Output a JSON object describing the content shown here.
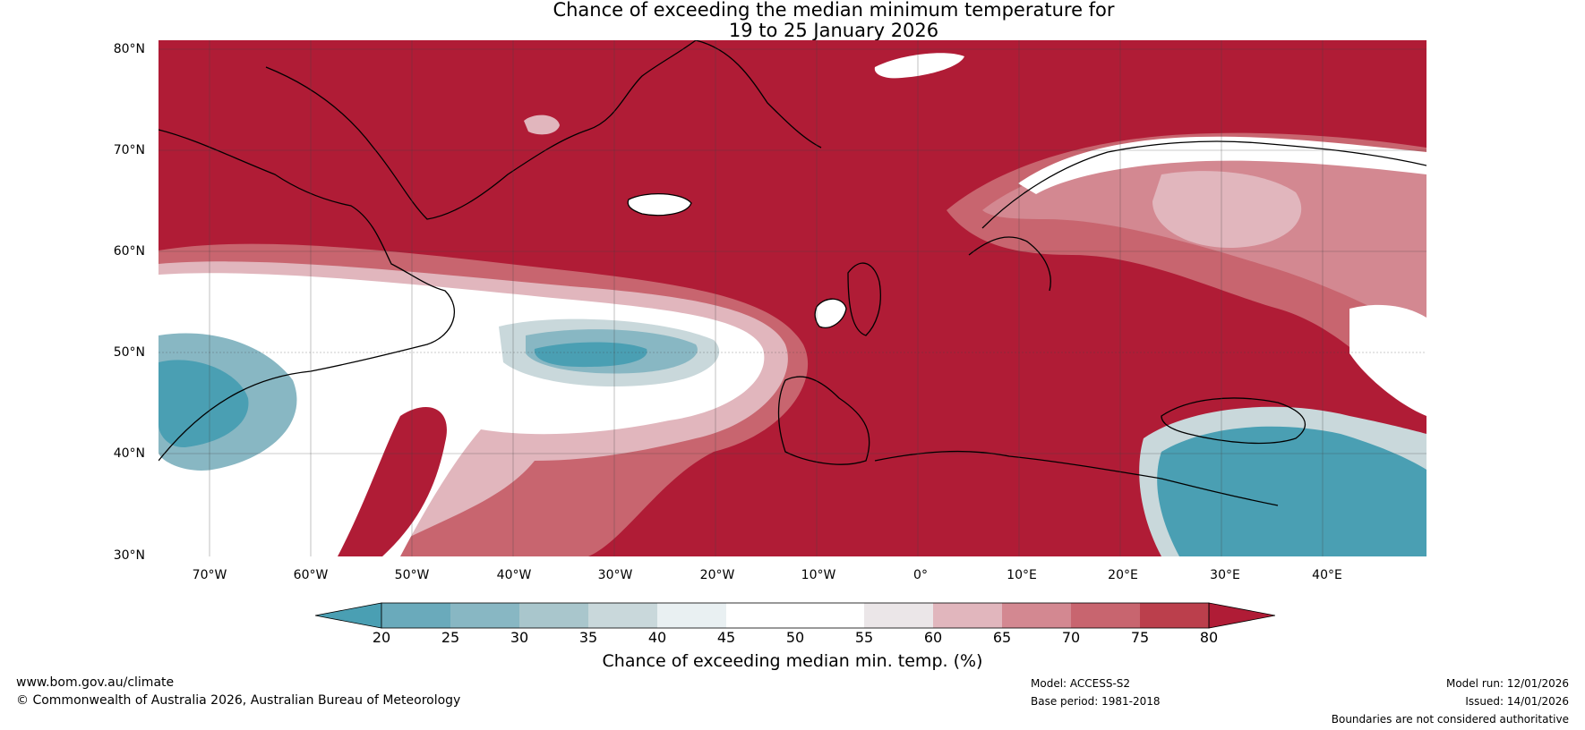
{
  "title": {
    "line1": "Chance of exceeding the median minimum temperature for",
    "line2": "19 to 25 January 2026"
  },
  "axes": {
    "lat_labels": [
      "80°N",
      "70°N",
      "60°N",
      "50°N",
      "40°N",
      "30°N"
    ],
    "lon_labels": [
      "70°W",
      "60°W",
      "50°W",
      "40°W",
      "30°W",
      "20°W",
      "10°W",
      "0°",
      "10°E",
      "20°E",
      "30°E",
      "40°E"
    ],
    "lat_range": [
      30,
      80
    ],
    "lon_range": [
      -75,
      50
    ]
  },
  "colorbar": {
    "title": "Chance of exceeding median min. temp. (%)",
    "ticks": [
      "20",
      "25",
      "30",
      "35",
      "40",
      "45",
      "50",
      "55",
      "60",
      "65",
      "70",
      "75",
      "80"
    ],
    "colors": [
      "#4a9fb3",
      "#6aaabb",
      "#88b7c3",
      "#a9c6cc",
      "#c9d8db",
      "#e9f0f2",
      "#ffffff",
      "#ffffff",
      "#ebe6e8",
      "#e1b6bd",
      "#d38891",
      "#c8656f",
      "#bb3f4c",
      "#b01c36"
    ]
  },
  "map_colors": {
    "strong_warm": "#b01c36",
    "warm": "#c8656f",
    "mild_warm": "#d38891",
    "light_warm": "#e1b6bd",
    "neutral": "#ffffff",
    "light_cool": "#c9d8db",
    "cool": "#88b7c3",
    "strong_cool": "#4a9fb3"
  },
  "footer": {
    "website": "www.bom.gov.au/climate",
    "copyright": "© Commonwealth of Australia 2026, Australian Bureau of Meteorology",
    "model": "Model: ACCESS-S2",
    "base_period": "Base period: 1981-2018",
    "model_run": "Model run: 12/01/2026",
    "issued": "Issued: 14/01/2026",
    "disclaimer": "Boundaries are not considered authoritative"
  }
}
